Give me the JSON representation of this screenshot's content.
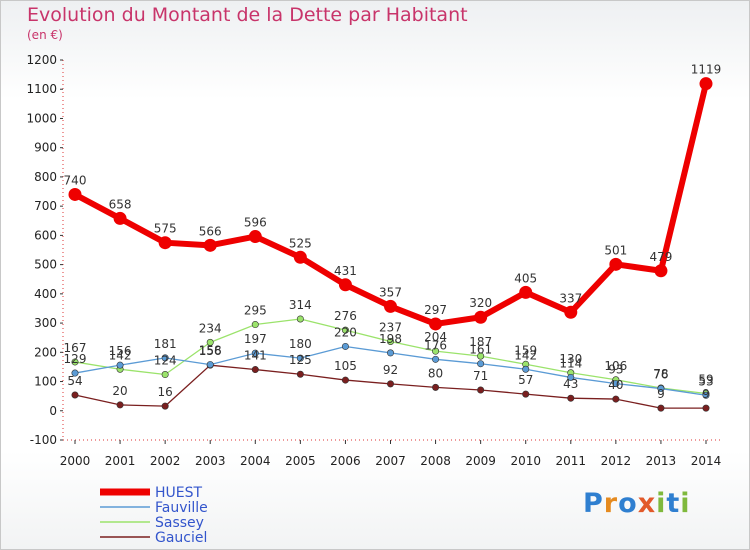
{
  "header": {
    "title": "Evolution du Montant de la Dette par Habitant",
    "subtitle": "(en €)"
  },
  "logo": {
    "text": "Proxiti",
    "colors": [
      "#2f7fd0",
      "#e58a1f",
      "#2f7fd0",
      "#e25a2a",
      "#7fb93c",
      "#2f7fd0",
      "#7fb93c"
    ]
  },
  "chart_data": {
    "type": "line",
    "x": [
      2000,
      2001,
      2002,
      2003,
      2004,
      2005,
      2006,
      2007,
      2008,
      2009,
      2010,
      2011,
      2012,
      2013,
      2014
    ],
    "ylim": [
      -100,
      1200
    ],
    "yticks": [
      -100,
      0,
      100,
      200,
      300,
      400,
      500,
      600,
      700,
      800,
      900,
      1000,
      1100,
      1200
    ],
    "grid": false,
    "legend_position": "bottom-left",
    "series": [
      {
        "name": "HUEST",
        "color": "#ee0000",
        "values": [
          740,
          658,
          575,
          566,
          596,
          525,
          431,
          357,
          297,
          320,
          405,
          337,
          501,
          479,
          1119
        ]
      },
      {
        "name": "Fauville",
        "color": "#5b9bd5",
        "values": [
          129,
          156,
          181,
          158,
          197,
          180,
          220,
          198,
          176,
          161,
          142,
          114,
          93,
          76,
          53
        ]
      },
      {
        "name": "Sassey",
        "color": "#9be36b",
        "values": [
          167,
          142,
          124,
          234,
          295,
          314,
          276,
          237,
          204,
          187,
          159,
          130,
          106,
          78,
          59
        ]
      },
      {
        "name": "Gauciel",
        "color": "#7a1f1f",
        "values": [
          54,
          20,
          16,
          156,
          141,
          125,
          105,
          92,
          80,
          71,
          57,
          43,
          40,
          9,
          9
        ]
      }
    ]
  }
}
